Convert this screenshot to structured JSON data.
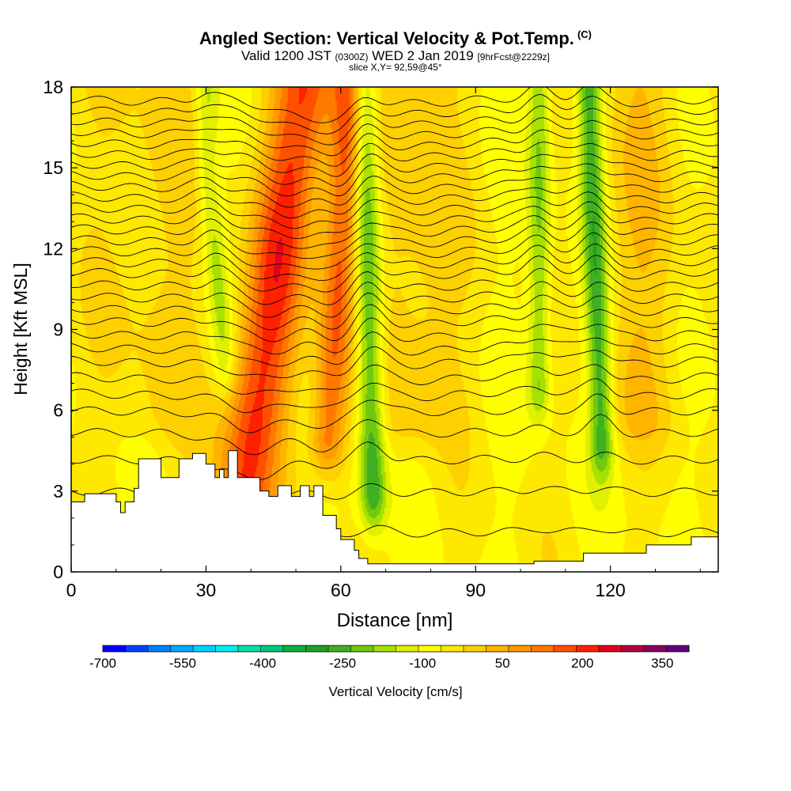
{
  "header": {
    "title": "Angled Section: Vertical Velocity & Pot.Temp.",
    "title_unit": "(C)",
    "valid_prefix": "Valid 1200 JST",
    "valid_utc": "(0300Z)",
    "valid_date": "WED 2 Jan 2019",
    "forecast": "[9hrFcst@2229z]",
    "slice": "slice X,Y= 92,59@45°"
  },
  "chart_data": {
    "type": "heatmap",
    "xlabel": "Distance [nm]",
    "ylabel": "Height [Kft MSL]",
    "xlim": [
      0,
      144
    ],
    "ylim": [
      0,
      18
    ],
    "x_ticks": [
      0,
      30,
      60,
      90,
      120
    ],
    "y_ticks": [
      0,
      3,
      6,
      9,
      12,
      15,
      18
    ],
    "colorbar": {
      "label": "Vertical Velocity [cm/s]",
      "min": -700,
      "max": 400,
      "step": 50,
      "tick_labels": [
        "-700",
        "-550",
        "-400",
        "-250",
        "-100",
        "50",
        "200",
        "350"
      ],
      "tick_values": [
        -700,
        -550,
        -400,
        -250,
        -100,
        50,
        200,
        350
      ],
      "colors": [
        "#0000ff",
        "#0040ff",
        "#0080ff",
        "#00aaff",
        "#00d2ff",
        "#00eeee",
        "#00e0a0",
        "#00c878",
        "#10b040",
        "#20a020",
        "#40b020",
        "#70c810",
        "#a8e000",
        "#e0f000",
        "#ffff00",
        "#ffe800",
        "#ffd000",
        "#ffb400",
        "#ff9a00",
        "#ff7800",
        "#ff5000",
        "#ff2000",
        "#e00020",
        "#b00040",
        "#880060",
        "#600080"
      ]
    },
    "terrain_profile": {
      "x_nm": [
        0,
        3,
        3,
        10,
        10,
        11,
        11,
        12,
        12,
        14,
        14,
        15,
        15,
        20,
        20,
        24,
        24,
        27,
        27,
        30,
        30,
        32,
        32,
        33,
        33,
        34,
        34,
        35,
        35,
        37,
        37,
        42,
        42,
        44,
        44,
        46,
        46,
        49,
        49,
        51,
        51,
        53,
        53,
        54,
        54,
        56,
        56,
        59,
        59,
        60,
        60,
        63,
        63,
        64,
        64,
        66,
        66,
        67,
        67,
        103,
        103,
        114,
        114,
        128,
        128,
        138,
        138,
        144
      ],
      "height_kft": [
        2.6,
        2.6,
        2.9,
        2.9,
        2.6,
        2.6,
        2.2,
        2.2,
        2.6,
        2.6,
        3.1,
        3.1,
        4.2,
        4.2,
        3.5,
        3.5,
        4.2,
        4.2,
        4.4,
        4.4,
        4.0,
        4.0,
        3.5,
        3.5,
        3.8,
        3.8,
        3.5,
        3.5,
        4.5,
        4.5,
        3.5,
        3.5,
        3.0,
        3.0,
        2.8,
        2.8,
        3.2,
        3.2,
        2.8,
        2.8,
        3.2,
        3.2,
        2.8,
        2.8,
        3.2,
        3.2,
        2.1,
        2.1,
        1.6,
        1.6,
        1.2,
        1.2,
        0.8,
        0.8,
        0.5,
        0.5,
        0.3,
        0.3,
        0.3,
        0.3,
        0.4,
        0.4,
        0.7,
        0.7,
        1.0,
        1.0,
        1.3,
        1.3
      ]
    },
    "velocity_features": [
      {
        "kind": "updraft",
        "x_nm": 38,
        "x_top_nm": 52,
        "width_nm": 7,
        "strength_cm_s": 300,
        "top_kft": 18,
        "base_kft": 3
      },
      {
        "kind": "updraft",
        "x_nm": 57,
        "x_top_nm": 62,
        "width_nm": 4,
        "strength_cm_s": 250,
        "top_kft": 18,
        "base_kft": 5
      },
      {
        "kind": "downdraft",
        "x_nm": 67,
        "x_top_nm": 65,
        "width_nm": 3,
        "strength_cm_s": -260,
        "top_kft": 18,
        "base_kft": 3
      },
      {
        "kind": "downdraft",
        "x_nm": 118,
        "x_top_nm": 115,
        "width_nm": 2.6,
        "strength_cm_s": -230,
        "top_kft": 18,
        "base_kft": 5
      },
      {
        "kind": "downdraft",
        "x_nm": 104,
        "x_top_nm": 104,
        "width_nm": 2.5,
        "strength_cm_s": -170,
        "top_kft": 18,
        "base_kft": 7
      },
      {
        "kind": "downdraft",
        "x_nm": 34,
        "x_top_nm": 30,
        "width_nm": 2.5,
        "strength_cm_s": -120,
        "top_kft": 15,
        "base_kft": 8
      },
      {
        "kind": "updraft",
        "x_nm": 76,
        "x_top_nm": 76,
        "width_nm": 10,
        "strength_cm_s": 90,
        "top_kft": 18,
        "base_kft": 6
      },
      {
        "kind": "updraft",
        "x_nm": 127,
        "x_top_nm": 127,
        "width_nm": 9,
        "strength_cm_s": 80,
        "top_kft": 18,
        "base_kft": 6
      },
      {
        "kind": "updraft",
        "x_nm": 18,
        "x_top_nm": 18,
        "width_nm": 12,
        "strength_cm_s": 60,
        "top_kft": 18,
        "base_kft": 6
      }
    ],
    "pot_temp_isentropes_kft": [
      1.5,
      3,
      4.2,
      5.2,
      6,
      6.7,
      7.3,
      7.9,
      8.4,
      8.9,
      9.4,
      9.85,
      10.3,
      10.75,
      11.2,
      11.6,
      12.0,
      12.4,
      12.8,
      13.2,
      13.6,
      14.0,
      14.4,
      14.8,
      15.2,
      15.6,
      16.0,
      16.4,
      16.8,
      17.2,
      17.6
    ]
  }
}
